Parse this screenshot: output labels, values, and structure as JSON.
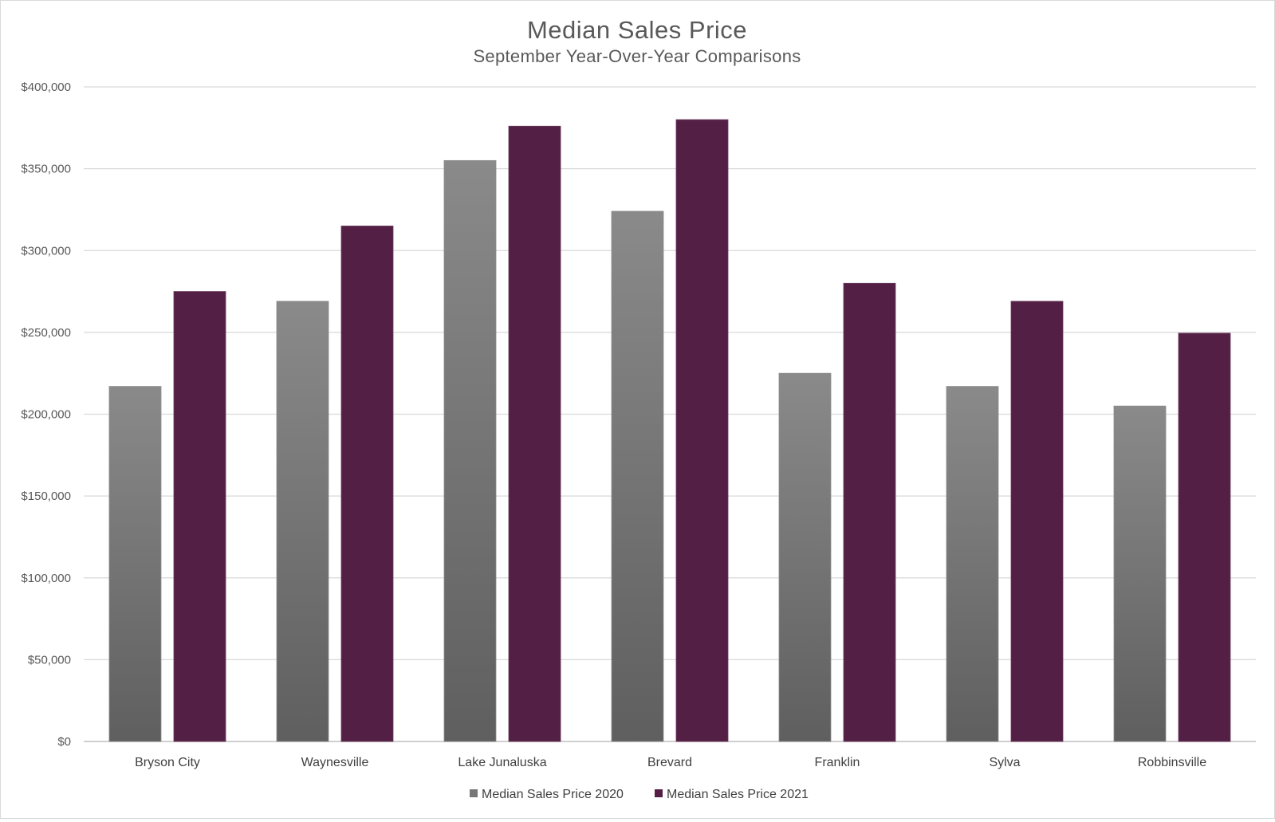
{
  "chart_data": {
    "type": "bar",
    "title": "Median Sales Price",
    "subtitle": "September Year-Over-Year Comparisons",
    "xlabel": "",
    "ylabel": "",
    "ylim": [
      0,
      400000
    ],
    "yticks": [
      0,
      50000,
      100000,
      150000,
      200000,
      250000,
      300000,
      350000,
      400000
    ],
    "ytick_labels": [
      "$0",
      "$50,000",
      "$100,000",
      "$150,000",
      "$200,000",
      "$250,000",
      "$300,000",
      "$350,000",
      "$400,000"
    ],
    "categories": [
      "Bryson City",
      "Waynesville",
      "Lake Junaluska",
      "Brevard",
      "Franklin",
      "Sylva",
      "Robbinsville"
    ],
    "series": [
      {
        "name": "Median Sales Price 2020",
        "color": "#767676",
        "values": [
          217000,
          269000,
          355000,
          324000,
          225000,
          217000,
          205000
        ]
      },
      {
        "name": "Median Sales Price 2021",
        "color": "#541f45",
        "values": [
          275000,
          315000,
          376000,
          380000,
          280000,
          269000,
          249500
        ]
      }
    ],
    "grid": true,
    "legend_position": "bottom"
  }
}
